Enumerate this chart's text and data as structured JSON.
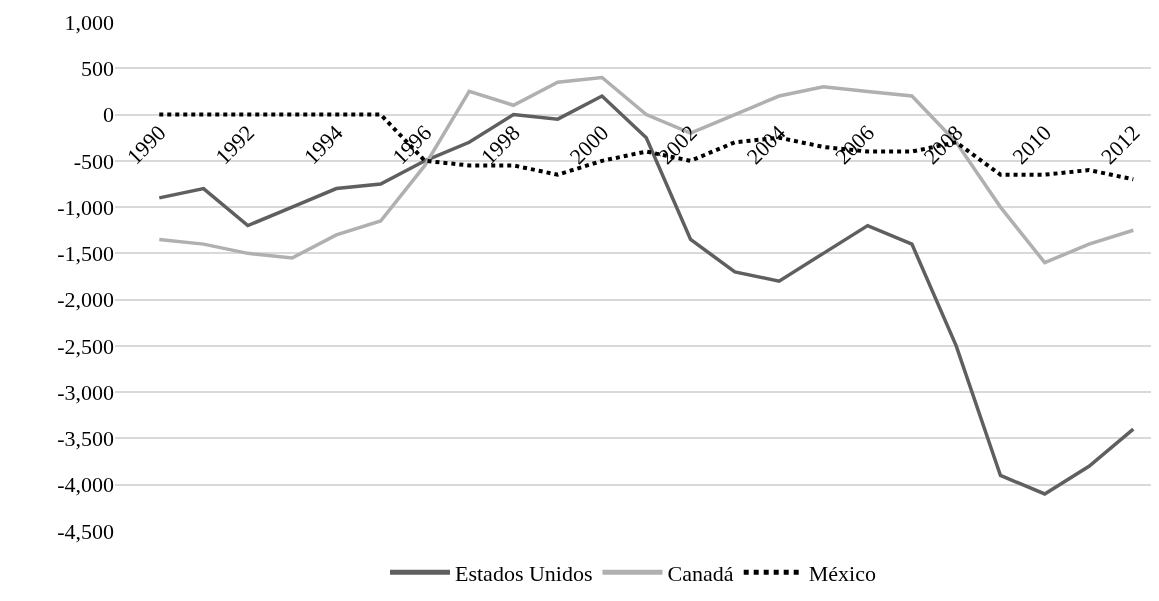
{
  "chart_data": {
    "type": "line",
    "categories": [
      "1990",
      null,
      "1992",
      null,
      "1994",
      null,
      "1996",
      null,
      "1998",
      null,
      "2000",
      null,
      "2002",
      null,
      "2004",
      null,
      "2006",
      null,
      "2008",
      null,
      "2010",
      null,
      "2012"
    ],
    "series": [
      {
        "name": "Estados Unidos",
        "color": "#5f5f5f",
        "line_style": "solid",
        "values": [
          -900,
          -800,
          -1200,
          -1000,
          -800,
          -750,
          -500,
          -300,
          0,
          -50,
          200,
          -250,
          -1350,
          -1700,
          -1800,
          -1500,
          -1200,
          -1400,
          -2500,
          -3900,
          -4100,
          -3800,
          -3400
        ]
      },
      {
        "name": "Canadá",
        "color": "#b0b0b0",
        "line_style": "solid",
        "values": [
          -1350,
          -1400,
          -1500,
          -1550,
          -1300,
          -1150,
          -550,
          250,
          100,
          350,
          400,
          0,
          -200,
          0,
          200,
          300,
          250,
          200,
          -300,
          -1000,
          -1600,
          -1400,
          -1250
        ]
      },
      {
        "name": "México",
        "color": "#000000",
        "line_style": "dotted",
        "values": [
          0,
          0,
          0,
          0,
          0,
          0,
          -500,
          -550,
          -550,
          -650,
          -500,
          -400,
          -500,
          -300,
          -250,
          -350,
          -400,
          -400,
          -300,
          -650,
          -650,
          -600,
          -700
        ]
      }
    ],
    "ylim": [
      -4500,
      1000
    ],
    "yticks": [
      {
        "value": 1000,
        "label": "1,000"
      },
      500,
      0,
      -500,
      {
        "value": -1000,
        "label": "-1,000"
      },
      {
        "value": -1500,
        "label": "-1,500"
      },
      {
        "value": -2000,
        "label": "-2,000"
      },
      {
        "value": -2500,
        "label": "-2,500"
      },
      {
        "value": -3000,
        "label": "-3,000"
      },
      {
        "value": -3500,
        "label": "-3,500"
      },
      {
        "value": -4000,
        "label": "-4,000"
      },
      {
        "value": -4500,
        "label": "-4,500"
      }
    ],
    "grid": "y",
    "legend": "bottom",
    "marker": "none"
  }
}
